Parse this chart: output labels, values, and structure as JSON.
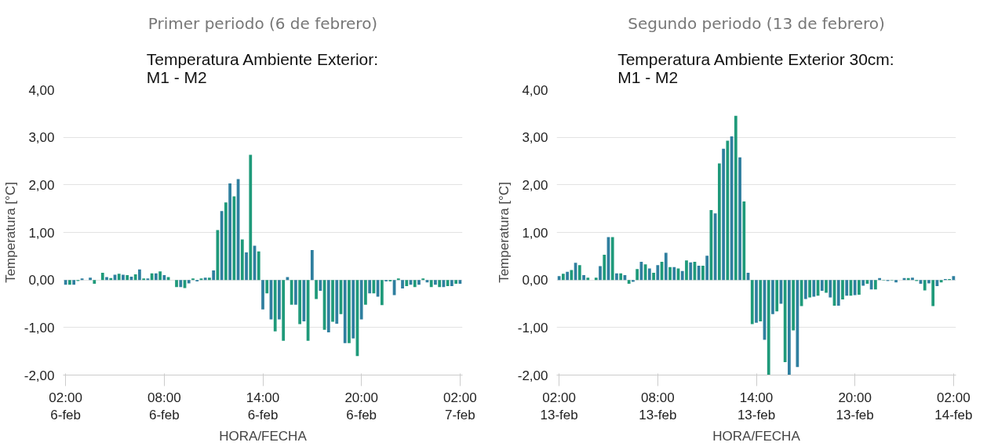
{
  "chart_data": [
    {
      "type": "bar",
      "subtitle": "Primer periodo (6 de febrero)",
      "title": "Temperatura Ambiente Exterior:\nM1 - M2",
      "xlabel": "HORA/FECHA",
      "ylabel": "Temperatura [°C]",
      "categories": [
        "02:00\n6-feb",
        null,
        null,
        null,
        null,
        null,
        null,
        null,
        null,
        null,
        null,
        null,
        null,
        null,
        null,
        null,
        null,
        null,
        null,
        null,
        null,
        null,
        null,
        null,
        "08:00\n6-feb",
        null,
        null,
        null,
        null,
        null,
        null,
        null,
        null,
        null,
        null,
        null,
        null,
        null,
        null,
        null,
        null,
        null,
        null,
        null,
        null,
        null,
        null,
        null,
        "14:00\n6-feb",
        null,
        null,
        null,
        null,
        null,
        null,
        null,
        null,
        null,
        null,
        null,
        null,
        null,
        null,
        null,
        null,
        null,
        null,
        null,
        null,
        null,
        null,
        null,
        "20:00\n6-feb",
        null,
        null,
        null,
        null,
        null,
        null,
        null,
        null,
        null,
        null,
        null,
        null,
        null,
        null,
        null,
        null,
        null,
        null,
        null,
        null,
        null,
        null,
        null,
        "02:00\n7-feb"
      ],
      "values": [
        -0.1,
        -0.1,
        -0.1,
        -0.02,
        0.03,
        0.0,
        0.05,
        -0.08,
        0.0,
        0.15,
        0.06,
        0.04,
        0.11,
        0.13,
        0.11,
        0.1,
        0.07,
        0.12,
        0.22,
        0.03,
        0.03,
        0.14,
        0.14,
        0.18,
        0.1,
        0.06,
        0.0,
        -0.15,
        -0.15,
        -0.17,
        -0.07,
        0.03,
        -0.03,
        0.03,
        0.05,
        0.05,
        0.2,
        1.05,
        1.45,
        1.63,
        2.03,
        1.76,
        2.12,
        0.85,
        0.58,
        2.63,
        0.72,
        0.6,
        -0.62,
        -0.28,
        -0.83,
        -1.08,
        -0.83,
        -1.28,
        0.06,
        -0.52,
        -0.52,
        -0.93,
        -0.87,
        -1.28,
        0.63,
        -0.4,
        -0.23,
        -1.05,
        -1.1,
        -0.88,
        -0.92,
        -0.72,
        -1.33,
        -1.33,
        -1.23,
        -1.6,
        -0.83,
        -0.52,
        -0.28,
        -0.28,
        -0.35,
        -0.53,
        -0.03,
        -0.03,
        -0.32,
        0.03,
        -0.18,
        -0.13,
        -0.1,
        -0.15,
        -0.1,
        0.03,
        -0.05,
        -0.15,
        -0.1,
        -0.15,
        -0.15,
        -0.13,
        -0.13,
        -0.08,
        -0.08
      ],
      "colors": [
        "#2f7f9f",
        "#1f9a7a",
        "#2f7f9f",
        "#1f9a7a",
        "#2f7f9f",
        "#1f9a7a",
        "#2f7f9f",
        "#1f9a7a",
        "#2f7f9f",
        "#1f9a7a",
        "#2f7f9f",
        "#1f9a7a",
        "#2f7f9f",
        "#1f9a7a",
        "#2f7f9f",
        "#1f9a7a",
        "#2f7f9f",
        "#1f9a7a",
        "#2f7f9f",
        "#1f9a7a",
        "#2f7f9f",
        "#1f9a7a",
        "#2f7f9f",
        "#1f9a7a",
        "#2f7f9f",
        "#1f9a7a",
        "#2f7f9f",
        "#1f9a7a",
        "#2f7f9f",
        "#1f9a7a",
        "#2f7f9f",
        "#1f9a7a",
        "#2f7f9f",
        "#1f9a7a",
        "#2f7f9f",
        "#1f9a7a",
        "#2f7f9f",
        "#1f9a7a",
        "#2f7f9f",
        "#1f9a7a",
        "#2f7f9f",
        "#1f9a7a",
        "#2f7f9f",
        "#1f9a7a",
        "#2f7f9f",
        "#1f9a7a",
        "#2f7f9f",
        "#1f9a7a",
        "#2f7f9f",
        "#1f9a7a",
        "#2f7f9f",
        "#1f9a7a",
        "#2f7f9f",
        "#1f9a7a",
        "#2f7f9f",
        "#1f9a7a",
        "#2f7f9f",
        "#1f9a7a",
        "#2f7f9f",
        "#1f9a7a",
        "#2f7f9f",
        "#1f9a7a",
        "#2f7f9f",
        "#1f9a7a",
        "#2f7f9f",
        "#1f9a7a",
        "#2f7f9f",
        "#1f9a7a",
        "#2f7f9f",
        "#1f9a7a",
        "#2f7f9f",
        "#1f9a7a",
        "#2f7f9f",
        "#1f9a7a",
        "#2f7f9f",
        "#1f9a7a",
        "#2f7f9f",
        "#1f9a7a",
        "#2f7f9f",
        "#1f9a7a",
        "#2f7f9f",
        "#1f9a7a",
        "#2f7f9f",
        "#1f9a7a",
        "#2f7f9f",
        "#1f9a7a",
        "#2f7f9f",
        "#1f9a7a",
        "#2f7f9f",
        "#1f9a7a",
        "#2f7f9f",
        "#1f9a7a",
        "#2f7f9f",
        "#1f9a7a",
        "#2f7f9f",
        "#1f9a7a",
        "#2f7f9f"
      ],
      "ylim": [
        -2,
        4
      ],
      "yticks": [
        {
          "value": -2,
          "label": "-2,00"
        },
        {
          "value": -1,
          "label": "-1,00"
        },
        {
          "value": 0,
          "label": "0,00"
        },
        {
          "value": 1,
          "label": "1,00"
        },
        {
          "value": 2,
          "label": "2,00"
        },
        {
          "value": 3,
          "label": "3,00"
        },
        {
          "value": 4,
          "label": "4,00"
        }
      ],
      "grid": "y"
    },
    {
      "type": "bar",
      "subtitle": "Segundo periodo (13 de febrero)",
      "title": "Temperatura Ambiente Exterior 30cm:\nM1 - M2",
      "xlabel": "HORA/FECHA",
      "ylabel": "Temperatura [°C]",
      "categories": [
        "02:00\n13-feb",
        null,
        null,
        null,
        null,
        null,
        null,
        null,
        null,
        null,
        null,
        null,
        null,
        null,
        null,
        null,
        null,
        null,
        null,
        null,
        null,
        null,
        null,
        null,
        "08:00\n13-feb",
        null,
        null,
        null,
        null,
        null,
        null,
        null,
        null,
        null,
        null,
        null,
        null,
        null,
        null,
        null,
        null,
        null,
        null,
        null,
        null,
        null,
        null,
        null,
        "14:00\n13-feb",
        null,
        null,
        null,
        null,
        null,
        null,
        null,
        null,
        null,
        null,
        null,
        null,
        null,
        null,
        null,
        null,
        null,
        null,
        null,
        null,
        null,
        null,
        null,
        "20:00\n13-feb",
        null,
        null,
        null,
        null,
        null,
        null,
        null,
        null,
        null,
        null,
        null,
        null,
        null,
        null,
        null,
        null,
        null,
        null,
        null,
        null,
        null,
        null,
        null,
        "02:00\n14-feb"
      ],
      "values": [
        0.08,
        0.13,
        0.17,
        0.21,
        0.36,
        0.31,
        0.1,
        0.05,
        0.0,
        0.05,
        0.29,
        0.53,
        0.9,
        0.9,
        0.14,
        0.14,
        0.1,
        -0.08,
        -0.04,
        0.23,
        0.38,
        0.33,
        0.24,
        0.15,
        0.31,
        0.38,
        0.57,
        0.27,
        0.27,
        0.24,
        0.19,
        0.41,
        0.37,
        0.38,
        0.3,
        0.3,
        0.51,
        1.47,
        1.4,
        2.45,
        2.76,
        2.93,
        3.02,
        3.45,
        2.58,
        1.65,
        0.15,
        -0.93,
        -0.9,
        -0.87,
        -1.26,
        -2.0,
        -0.72,
        -0.66,
        -0.5,
        -1.73,
        -2.0,
        -1.06,
        -1.83,
        -0.55,
        -0.4,
        -0.37,
        -0.35,
        -0.33,
        -0.23,
        -0.27,
        -0.37,
        -0.54,
        -0.54,
        -0.41,
        -0.33,
        -0.33,
        -0.32,
        -0.31,
        -0.12,
        -0.08,
        -0.2,
        -0.2,
        0.04,
        -0.01,
        -0.02,
        -0.01,
        -0.05,
        0.0,
        0.04,
        0.04,
        0.05,
        -0.02,
        -0.08,
        -0.22,
        -0.07,
        -0.55,
        -0.13,
        -0.05,
        0.02,
        0.02,
        0.08
      ],
      "colors": [
        "#2f7f9f",
        "#1f9a7a",
        "#2f7f9f",
        "#1f9a7a",
        "#2f7f9f",
        "#1f9a7a",
        "#2f7f9f",
        "#1f9a7a",
        "#2f7f9f",
        "#1f9a7a",
        "#2f7f9f",
        "#1f9a7a",
        "#2f7f9f",
        "#1f9a7a",
        "#2f7f9f",
        "#1f9a7a",
        "#2f7f9f",
        "#1f9a7a",
        "#2f7f9f",
        "#1f9a7a",
        "#2f7f9f",
        "#1f9a7a",
        "#2f7f9f",
        "#1f9a7a",
        "#2f7f9f",
        "#1f9a7a",
        "#2f7f9f",
        "#1f9a7a",
        "#2f7f9f",
        "#1f9a7a",
        "#2f7f9f",
        "#1f9a7a",
        "#2f7f9f",
        "#1f9a7a",
        "#2f7f9f",
        "#1f9a7a",
        "#2f7f9f",
        "#1f9a7a",
        "#2f7f9f",
        "#1f9a7a",
        "#2f7f9f",
        "#1f9a7a",
        "#2f7f9f",
        "#1f9a7a",
        "#2f7f9f",
        "#1f9a7a",
        "#2f7f9f",
        "#1f9a7a",
        "#2f7f9f",
        "#1f9a7a",
        "#2f7f9f",
        "#1f9a7a",
        "#2f7f9f",
        "#1f9a7a",
        "#2f7f9f",
        "#1f9a7a",
        "#2f7f9f",
        "#1f9a7a",
        "#2f7f9f",
        "#1f9a7a",
        "#2f7f9f",
        "#1f9a7a",
        "#2f7f9f",
        "#1f9a7a",
        "#2f7f9f",
        "#1f9a7a",
        "#2f7f9f",
        "#1f9a7a",
        "#2f7f9f",
        "#1f9a7a",
        "#2f7f9f",
        "#1f9a7a",
        "#2f7f9f",
        "#1f9a7a",
        "#2f7f9f",
        "#1f9a7a",
        "#2f7f9f",
        "#1f9a7a",
        "#2f7f9f",
        "#1f9a7a",
        "#2f7f9f",
        "#1f9a7a",
        "#2f7f9f",
        "#1f9a7a",
        "#2f7f9f",
        "#1f9a7a",
        "#2f7f9f",
        "#1f9a7a",
        "#2f7f9f",
        "#1f9a7a",
        "#2f7f9f",
        "#1f9a7a",
        "#2f7f9f",
        "#1f9a7a",
        "#2f7f9f",
        "#1f9a7a",
        "#2f7f9f"
      ],
      "ylim": [
        -2,
        4
      ],
      "yticks": [
        {
          "value": -2,
          "label": "-2,00"
        },
        {
          "value": -1,
          "label": "-1,00"
        },
        {
          "value": 0,
          "label": "0,00"
        },
        {
          "value": 1,
          "label": "1,00"
        },
        {
          "value": 2,
          "label": "2,00"
        },
        {
          "value": 3,
          "label": "3,00"
        },
        {
          "value": 4,
          "label": "4,00"
        }
      ],
      "grid": "y"
    }
  ]
}
